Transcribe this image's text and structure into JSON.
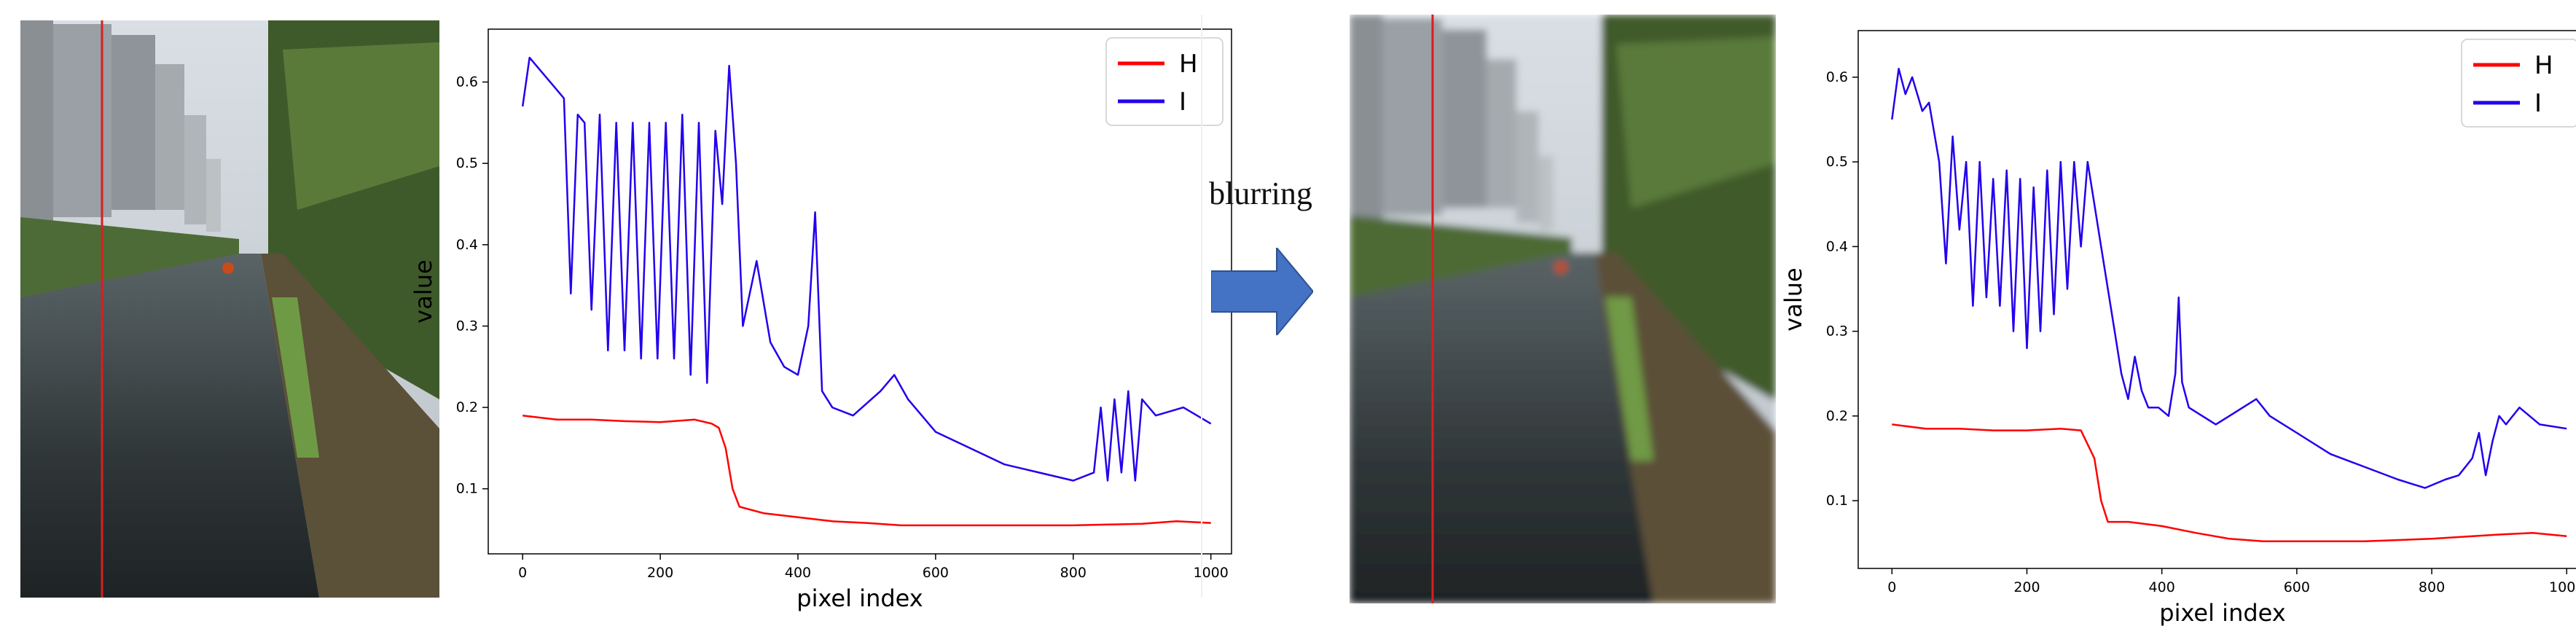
{
  "figure": {
    "arrow_label": "blurring",
    "arrow_color": "#4472c4"
  },
  "photos": [
    {
      "scene": "river-between-buildings-and-trees",
      "blurred": false,
      "scan_line_color": "#d62020"
    },
    {
      "scene": "river-between-buildings-and-trees",
      "blurred": true,
      "scan_line_color": "#d62020"
    }
  ],
  "chart_data": [
    {
      "type": "line",
      "title": "",
      "xlabel": "pixel index",
      "ylabel": "value",
      "xlim": [
        -50,
        1030
      ],
      "ylim": [
        0.02,
        0.665
      ],
      "xticks": [
        "0",
        "200",
        "400",
        "600",
        "800",
        "1000"
      ],
      "yticks": [
        "0.1",
        "0.2",
        "0.3",
        "0.4",
        "0.5",
        "0.6"
      ],
      "legend_position": "top-right",
      "grid": false,
      "series": [
        {
          "name": "H",
          "color": "#ff0000",
          "points": [
            [
              0,
              0.19
            ],
            [
              50,
              0.185
            ],
            [
              100,
              0.185
            ],
            [
              150,
              0.183
            ],
            [
              200,
              0.182
            ],
            [
              250,
              0.185
            ],
            [
              275,
              0.18
            ],
            [
              285,
              0.175
            ],
            [
              295,
              0.15
            ],
            [
              305,
              0.1
            ],
            [
              315,
              0.078
            ],
            [
              350,
              0.07
            ],
            [
              400,
              0.065
            ],
            [
              450,
              0.06
            ],
            [
              500,
              0.058
            ],
            [
              550,
              0.055
            ],
            [
              600,
              0.055
            ],
            [
              700,
              0.055
            ],
            [
              800,
              0.055
            ],
            [
              900,
              0.057
            ],
            [
              950,
              0.06
            ],
            [
              1000,
              0.058
            ]
          ]
        },
        {
          "name": "I",
          "color": "#2200ee",
          "points": [
            [
              0,
              0.57
            ],
            [
              10,
              0.63
            ],
            [
              30,
              0.61
            ],
            [
              60,
              0.58
            ],
            [
              70,
              0.34
            ],
            [
              80,
              0.56
            ],
            [
              90,
              0.55
            ],
            [
              100,
              0.32
            ],
            [
              112,
              0.56
            ],
            [
              124,
              0.27
            ],
            [
              136,
              0.55
            ],
            [
              148,
              0.27
            ],
            [
              160,
              0.55
            ],
            [
              172,
              0.26
            ],
            [
              184,
              0.55
            ],
            [
              196,
              0.26
            ],
            [
              208,
              0.55
            ],
            [
              220,
              0.26
            ],
            [
              232,
              0.56
            ],
            [
              244,
              0.24
            ],
            [
              256,
              0.55
            ],
            [
              268,
              0.23
            ],
            [
              280,
              0.54
            ],
            [
              290,
              0.45
            ],
            [
              300,
              0.62
            ],
            [
              310,
              0.5
            ],
            [
              320,
              0.3
            ],
            [
              340,
              0.38
            ],
            [
              360,
              0.28
            ],
            [
              380,
              0.25
            ],
            [
              400,
              0.24
            ],
            [
              415,
              0.3
            ],
            [
              425,
              0.44
            ],
            [
              435,
              0.22
            ],
            [
              450,
              0.2
            ],
            [
              480,
              0.19
            ],
            [
              520,
              0.22
            ],
            [
              540,
              0.24
            ],
            [
              560,
              0.21
            ],
            [
              600,
              0.17
            ],
            [
              650,
              0.15
            ],
            [
              700,
              0.13
            ],
            [
              750,
              0.12
            ],
            [
              800,
              0.11
            ],
            [
              830,
              0.12
            ],
            [
              840,
              0.2
            ],
            [
              850,
              0.11
            ],
            [
              860,
              0.21
            ],
            [
              870,
              0.12
            ],
            [
              880,
              0.22
            ],
            [
              890,
              0.11
            ],
            [
              900,
              0.21
            ],
            [
              920,
              0.19
            ],
            [
              960,
              0.2
            ],
            [
              1000,
              0.18
            ]
          ]
        }
      ]
    },
    {
      "type": "line",
      "title": "",
      "xlabel": "pixel index",
      "ylabel": "value",
      "xlim": [
        -50,
        1030
      ],
      "ylim": [
        0.02,
        0.655
      ],
      "xticks": [
        "0",
        "200",
        "400",
        "600",
        "800",
        "1000"
      ],
      "yticks": [
        "0.1",
        "0.2",
        "0.3",
        "0.4",
        "0.5",
        "0.6"
      ],
      "legend_position": "top-right",
      "grid": false,
      "series": [
        {
          "name": "H",
          "color": "#ff0000",
          "points": [
            [
              0,
              0.19
            ],
            [
              50,
              0.185
            ],
            [
              100,
              0.185
            ],
            [
              150,
              0.183
            ],
            [
              200,
              0.183
            ],
            [
              250,
              0.185
            ],
            [
              280,
              0.183
            ],
            [
              300,
              0.15
            ],
            [
              310,
              0.1
            ],
            [
              320,
              0.075
            ],
            [
              350,
              0.075
            ],
            [
              400,
              0.07
            ],
            [
              450,
              0.062
            ],
            [
              500,
              0.055
            ],
            [
              550,
              0.052
            ],
            [
              600,
              0.052
            ],
            [
              700,
              0.052
            ],
            [
              800,
              0.055
            ],
            [
              900,
              0.06
            ],
            [
              950,
              0.062
            ],
            [
              1000,
              0.058
            ]
          ]
        },
        {
          "name": "I",
          "color": "#2200ee",
          "points": [
            [
              0,
              0.55
            ],
            [
              10,
              0.61
            ],
            [
              20,
              0.58
            ],
            [
              30,
              0.6
            ],
            [
              45,
              0.56
            ],
            [
              55,
              0.57
            ],
            [
              70,
              0.5
            ],
            [
              80,
              0.38
            ],
            [
              90,
              0.53
            ],
            [
              100,
              0.42
            ],
            [
              110,
              0.5
            ],
            [
              120,
              0.33
            ],
            [
              130,
              0.5
            ],
            [
              140,
              0.34
            ],
            [
              150,
              0.48
            ],
            [
              160,
              0.33
            ],
            [
              170,
              0.49
            ],
            [
              180,
              0.3
            ],
            [
              190,
              0.48
            ],
            [
              200,
              0.28
            ],
            [
              210,
              0.47
            ],
            [
              220,
              0.3
            ],
            [
              230,
              0.49
            ],
            [
              240,
              0.32
            ],
            [
              250,
              0.5
            ],
            [
              260,
              0.35
            ],
            [
              270,
              0.5
            ],
            [
              280,
              0.4
            ],
            [
              290,
              0.5
            ],
            [
              300,
              0.45
            ],
            [
              310,
              0.4
            ],
            [
              320,
              0.35
            ],
            [
              330,
              0.3
            ],
            [
              340,
              0.25
            ],
            [
              350,
              0.22
            ],
            [
              360,
              0.27
            ],
            [
              370,
              0.23
            ],
            [
              380,
              0.21
            ],
            [
              395,
              0.21
            ],
            [
              410,
              0.2
            ],
            [
              420,
              0.25
            ],
            [
              425,
              0.34
            ],
            [
              430,
              0.24
            ],
            [
              440,
              0.21
            ],
            [
              460,
              0.2
            ],
            [
              480,
              0.19
            ],
            [
              500,
              0.2
            ],
            [
              540,
              0.22
            ],
            [
              560,
              0.2
            ],
            [
              600,
              0.18
            ],
            [
              650,
              0.155
            ],
            [
              700,
              0.14
            ],
            [
              750,
              0.125
            ],
            [
              790,
              0.115
            ],
            [
              820,
              0.125
            ],
            [
              840,
              0.13
            ],
            [
              860,
              0.15
            ],
            [
              870,
              0.18
            ],
            [
              880,
              0.13
            ],
            [
              890,
              0.17
            ],
            [
              900,
              0.2
            ],
            [
              910,
              0.19
            ],
            [
              930,
              0.21
            ],
            [
              960,
              0.19
            ],
            [
              1000,
              0.185
            ]
          ]
        }
      ]
    }
  ]
}
